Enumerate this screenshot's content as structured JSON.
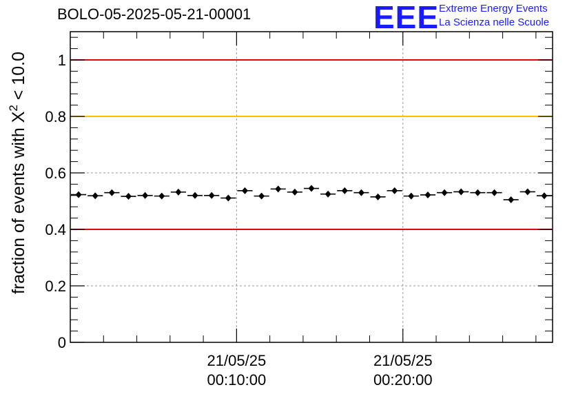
{
  "chart_data": {
    "type": "scatter",
    "title": "BOLO-05-2025-05-21-00001",
    "ylabel": "fraction of events with X² < 10.0",
    "ylabel_base": "fraction of events with X",
    "ylabel_sup": "2",
    "ylabel_tail": " < 10.0",
    "ylim": [
      0,
      1.1
    ],
    "yticks": [
      0,
      0.2,
      0.4,
      0.6,
      0.8,
      1
    ],
    "ytick_labels": [
      "0",
      "0.2",
      "0.4",
      "0.6",
      "0.8",
      "1"
    ],
    "xlim": [
      "2025-05-21 00:00:00",
      "2025-05-21 00:29:00"
    ],
    "xticks": [
      "2025-05-21 00:10:00",
      "2025-05-21 00:20:00"
    ],
    "xtick_labels": [
      [
        "21/05/25",
        "00:10:00"
      ],
      [
        "21/05/25",
        "00:20:00"
      ]
    ],
    "grid": true,
    "reference_lines": [
      {
        "y": 1.0,
        "color": "#e8000b"
      },
      {
        "y": 0.8,
        "color": "#ffc000"
      },
      {
        "y": 0.4,
        "color": "#e8000b"
      }
    ],
    "series": [
      {
        "x": [
          "00:00:30",
          "00:01:30",
          "00:02:30",
          "00:03:30",
          "00:04:30",
          "00:05:30",
          "00:06:30",
          "00:07:30",
          "00:08:30",
          "00:09:30",
          "00:10:30",
          "00:11:30",
          "00:12:30",
          "00:13:30",
          "00:14:30",
          "00:15:30",
          "00:16:30",
          "00:17:30",
          "00:18:30",
          "00:19:30",
          "00:20:30",
          "00:21:30",
          "00:22:30",
          "00:23:30",
          "00:24:30",
          "00:25:30",
          "00:26:30",
          "00:27:30",
          "00:28:30"
        ],
        "y": [
          0.523,
          0.519,
          0.53,
          0.517,
          0.52,
          0.518,
          0.532,
          0.52,
          0.52,
          0.511,
          0.537,
          0.518,
          0.543,
          0.532,
          0.545,
          0.525,
          0.537,
          0.53,
          0.515,
          0.537,
          0.518,
          0.522,
          0.53,
          0.533,
          0.53,
          0.53,
          0.505,
          0.533,
          0.519
        ],
        "color": "#000000"
      }
    ]
  },
  "logo": {
    "mark": "EEE",
    "line1": "Extreme Energy Events",
    "line2": "La Scienza nelle Scuole",
    "color": "#1a1aff"
  }
}
